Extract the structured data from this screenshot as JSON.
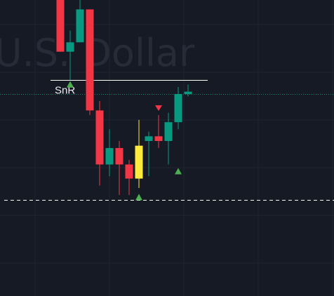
{
  "watermark": "U.S. Dollar",
  "colors": {
    "background": "#161a25",
    "up": "#089981",
    "down": "#f23645",
    "highlight": "#ffeb3b",
    "signal_up": "#4caf50",
    "signal_down": "#f23645",
    "snr_line": "#ffffff",
    "price_line": "#089981",
    "support_line": "#ffffff"
  },
  "chart_data": {
    "type": "candlestick",
    "ylim": [
      0,
      100
    ],
    "grid": true,
    "candles": [
      {
        "x": 1,
        "open": 100,
        "high": 100,
        "low": 78,
        "close": 78,
        "direction": "down"
      },
      {
        "x": 2,
        "open": 78,
        "high": 87,
        "low": 66,
        "close": 82,
        "direction": "up"
      },
      {
        "x": 3,
        "open": 82,
        "high": 100,
        "low": 82,
        "close": 96,
        "direction": "up"
      },
      {
        "x": 4,
        "open": 96,
        "high": 96,
        "low": 51,
        "close": 53,
        "direction": "down"
      },
      {
        "x": 5,
        "open": 53,
        "high": 57,
        "low": 21,
        "close": 30,
        "direction": "down"
      },
      {
        "x": 6,
        "open": 30,
        "high": 45,
        "low": 25,
        "close": 37,
        "direction": "up"
      },
      {
        "x": 7,
        "open": 37,
        "high": 40,
        "low": 17,
        "close": 30,
        "direction": "down"
      },
      {
        "x": 8,
        "open": 30,
        "high": 32,
        "low": 17,
        "close": 24,
        "direction": "down"
      },
      {
        "x": 9,
        "open": 24,
        "high": 49,
        "low": 20,
        "close": 38,
        "direction": "up",
        "highlight": true
      },
      {
        "x": 10,
        "open": 40,
        "high": 44,
        "low": 25,
        "close": 42,
        "direction": "up"
      },
      {
        "x": 11,
        "open": 42,
        "high": 51,
        "low": 37,
        "close": 40,
        "direction": "down"
      },
      {
        "x": 12,
        "open": 40,
        "high": 52,
        "low": 30,
        "close": 48,
        "direction": "up"
      },
      {
        "x": 13,
        "open": 48,
        "high": 63,
        "low": 45,
        "close": 60,
        "direction": "up"
      },
      {
        "x": 14,
        "open": 60,
        "high": 64,
        "low": 59,
        "close": 61,
        "direction": "up"
      }
    ],
    "signals": [
      {
        "x": 2,
        "kind": "up",
        "value": 64
      },
      {
        "x": 9,
        "kind": "up",
        "value": 16
      },
      {
        "x": 11,
        "kind": "down",
        "value": 54
      },
      {
        "x": 13,
        "kind": "up",
        "value": 27
      }
    ],
    "levels": [
      {
        "label": "SnR",
        "value": 66,
        "style": "solid",
        "x_from": 0,
        "x_to": 16
      },
      {
        "label": "",
        "value": 60,
        "style": "dotted"
      },
      {
        "label": "",
        "value": 15,
        "style": "dashed"
      }
    ]
  }
}
